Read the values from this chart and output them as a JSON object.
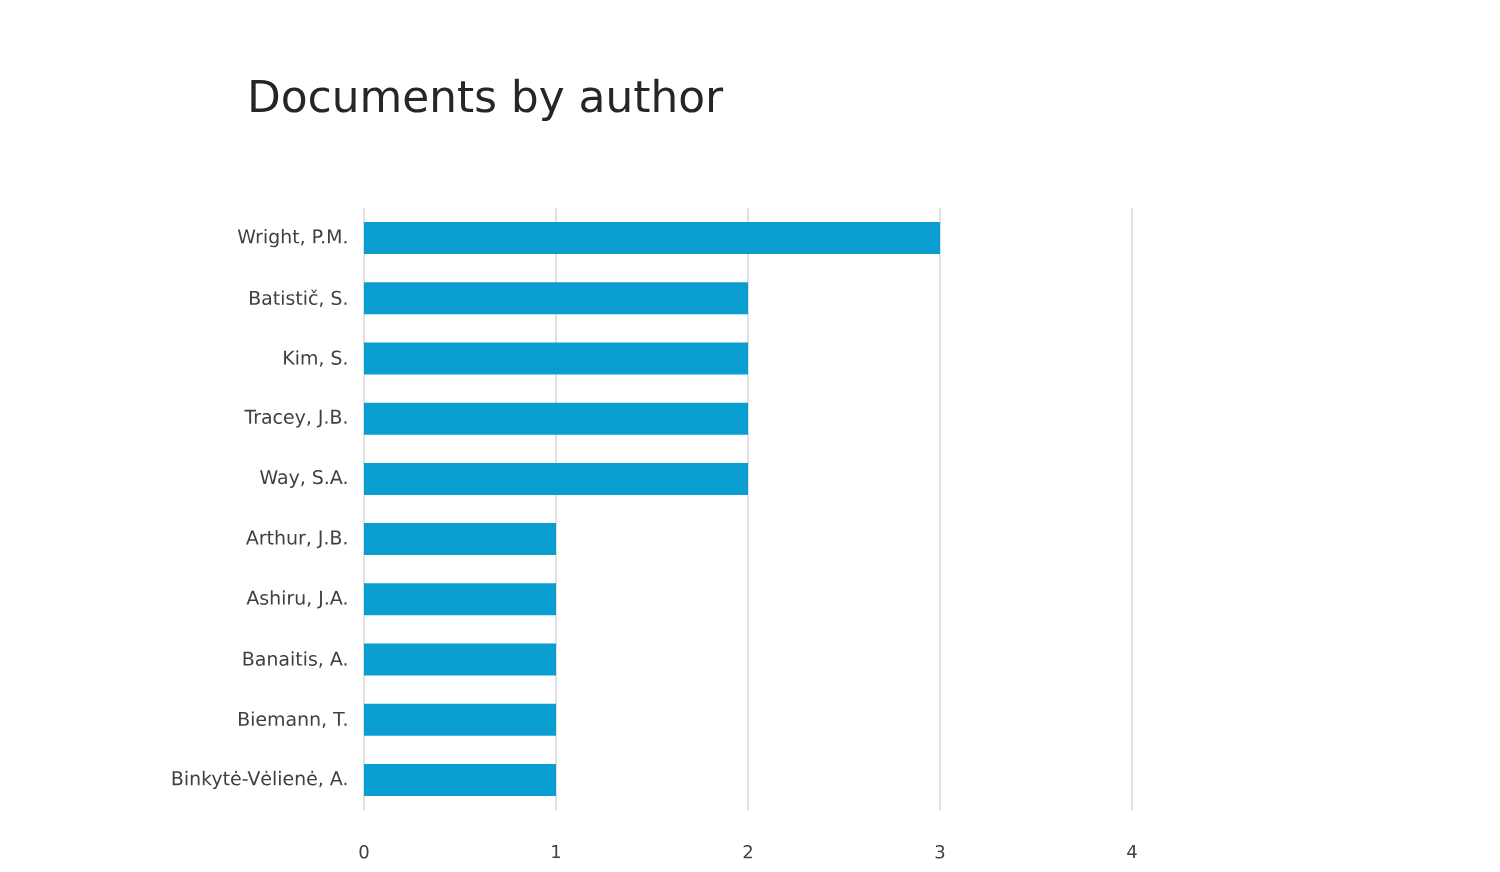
{
  "chart_data": {
    "type": "bar",
    "orientation": "horizontal",
    "title": "Documents by author",
    "categories": [
      "Wright, P.M.",
      "Batistič, S.",
      "Kim, S.",
      "Tracey, J.B.",
      "Way, S.A.",
      "Arthur, J.B.",
      "Ashiru, J.A.",
      "Banaitis, A.",
      "Biemann, T.",
      "Binkytė-Vėlienė, A."
    ],
    "values": [
      3,
      2,
      2,
      2,
      2,
      1,
      1,
      1,
      1,
      1
    ],
    "color": "#0a9ed0",
    "xlim": [
      0,
      4
    ],
    "xticks": [
      0,
      1,
      2,
      3,
      4
    ],
    "grid": "x"
  }
}
